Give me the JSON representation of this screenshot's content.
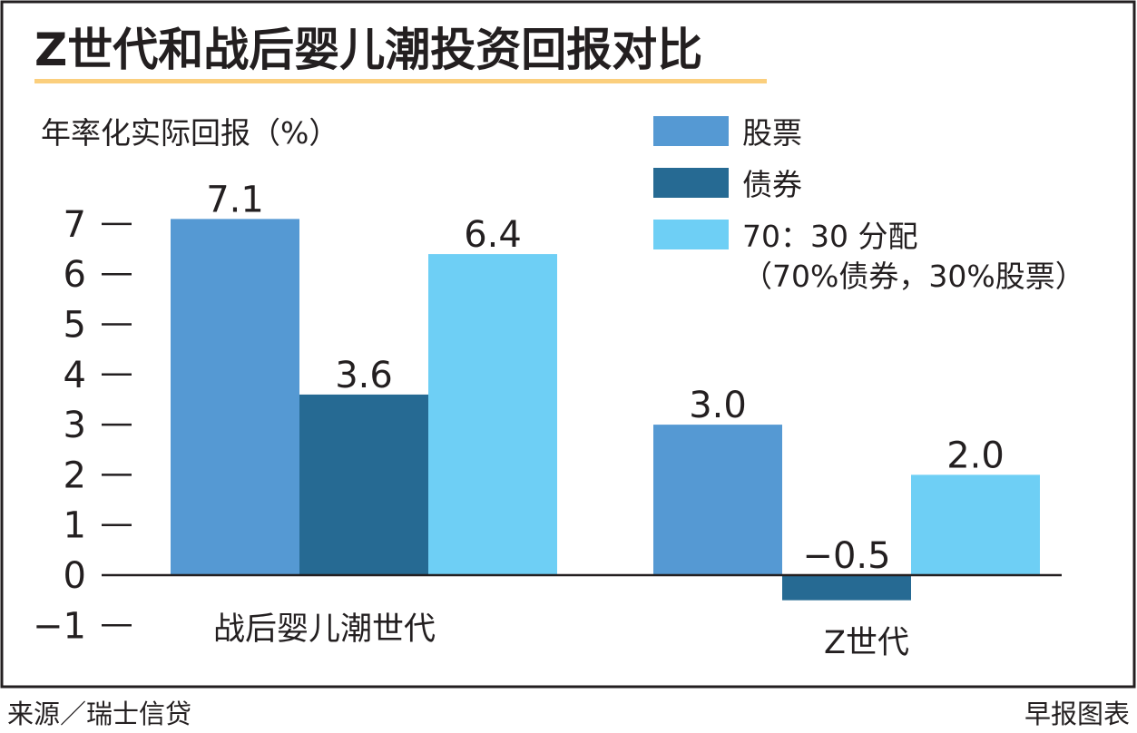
{
  "chart_data": {
    "type": "bar",
    "title": "Z世代和战后婴儿潮投资回报对比",
    "ylabel": "年率化实际回报（%）",
    "categories": [
      "战后婴儿潮世代",
      "Z世代"
    ],
    "series": [
      {
        "name": "股票",
        "values": [
          7.1,
          3.0
        ],
        "color": "#5599d3"
      },
      {
        "name": "债券",
        "values": [
          3.6,
          -0.5
        ],
        "color": "#266a93"
      },
      {
        "name": "70：30 分配",
        "name_note": "（70%债券，30%股票）",
        "values": [
          6.4,
          2.0
        ],
        "color": "#6ecff5"
      }
    ],
    "data_labels": [
      [
        "7.1",
        "3.6",
        "6.4"
      ],
      [
        "3.0",
        "−0.5",
        "2.0"
      ]
    ],
    "yticks": [
      "−1",
      "0",
      "1",
      "2",
      "3",
      "4",
      "5",
      "6",
      "7"
    ],
    "ytick_values": [
      -1,
      0,
      1,
      2,
      3,
      4,
      5,
      6,
      7
    ],
    "ylim": [
      -1,
      7
    ],
    "grid": false,
    "legend_placement": "top-right"
  },
  "accent_color": "#fbcf7d",
  "footer": {
    "source": "来源／瑞士信贷",
    "credit": "早报图表"
  }
}
